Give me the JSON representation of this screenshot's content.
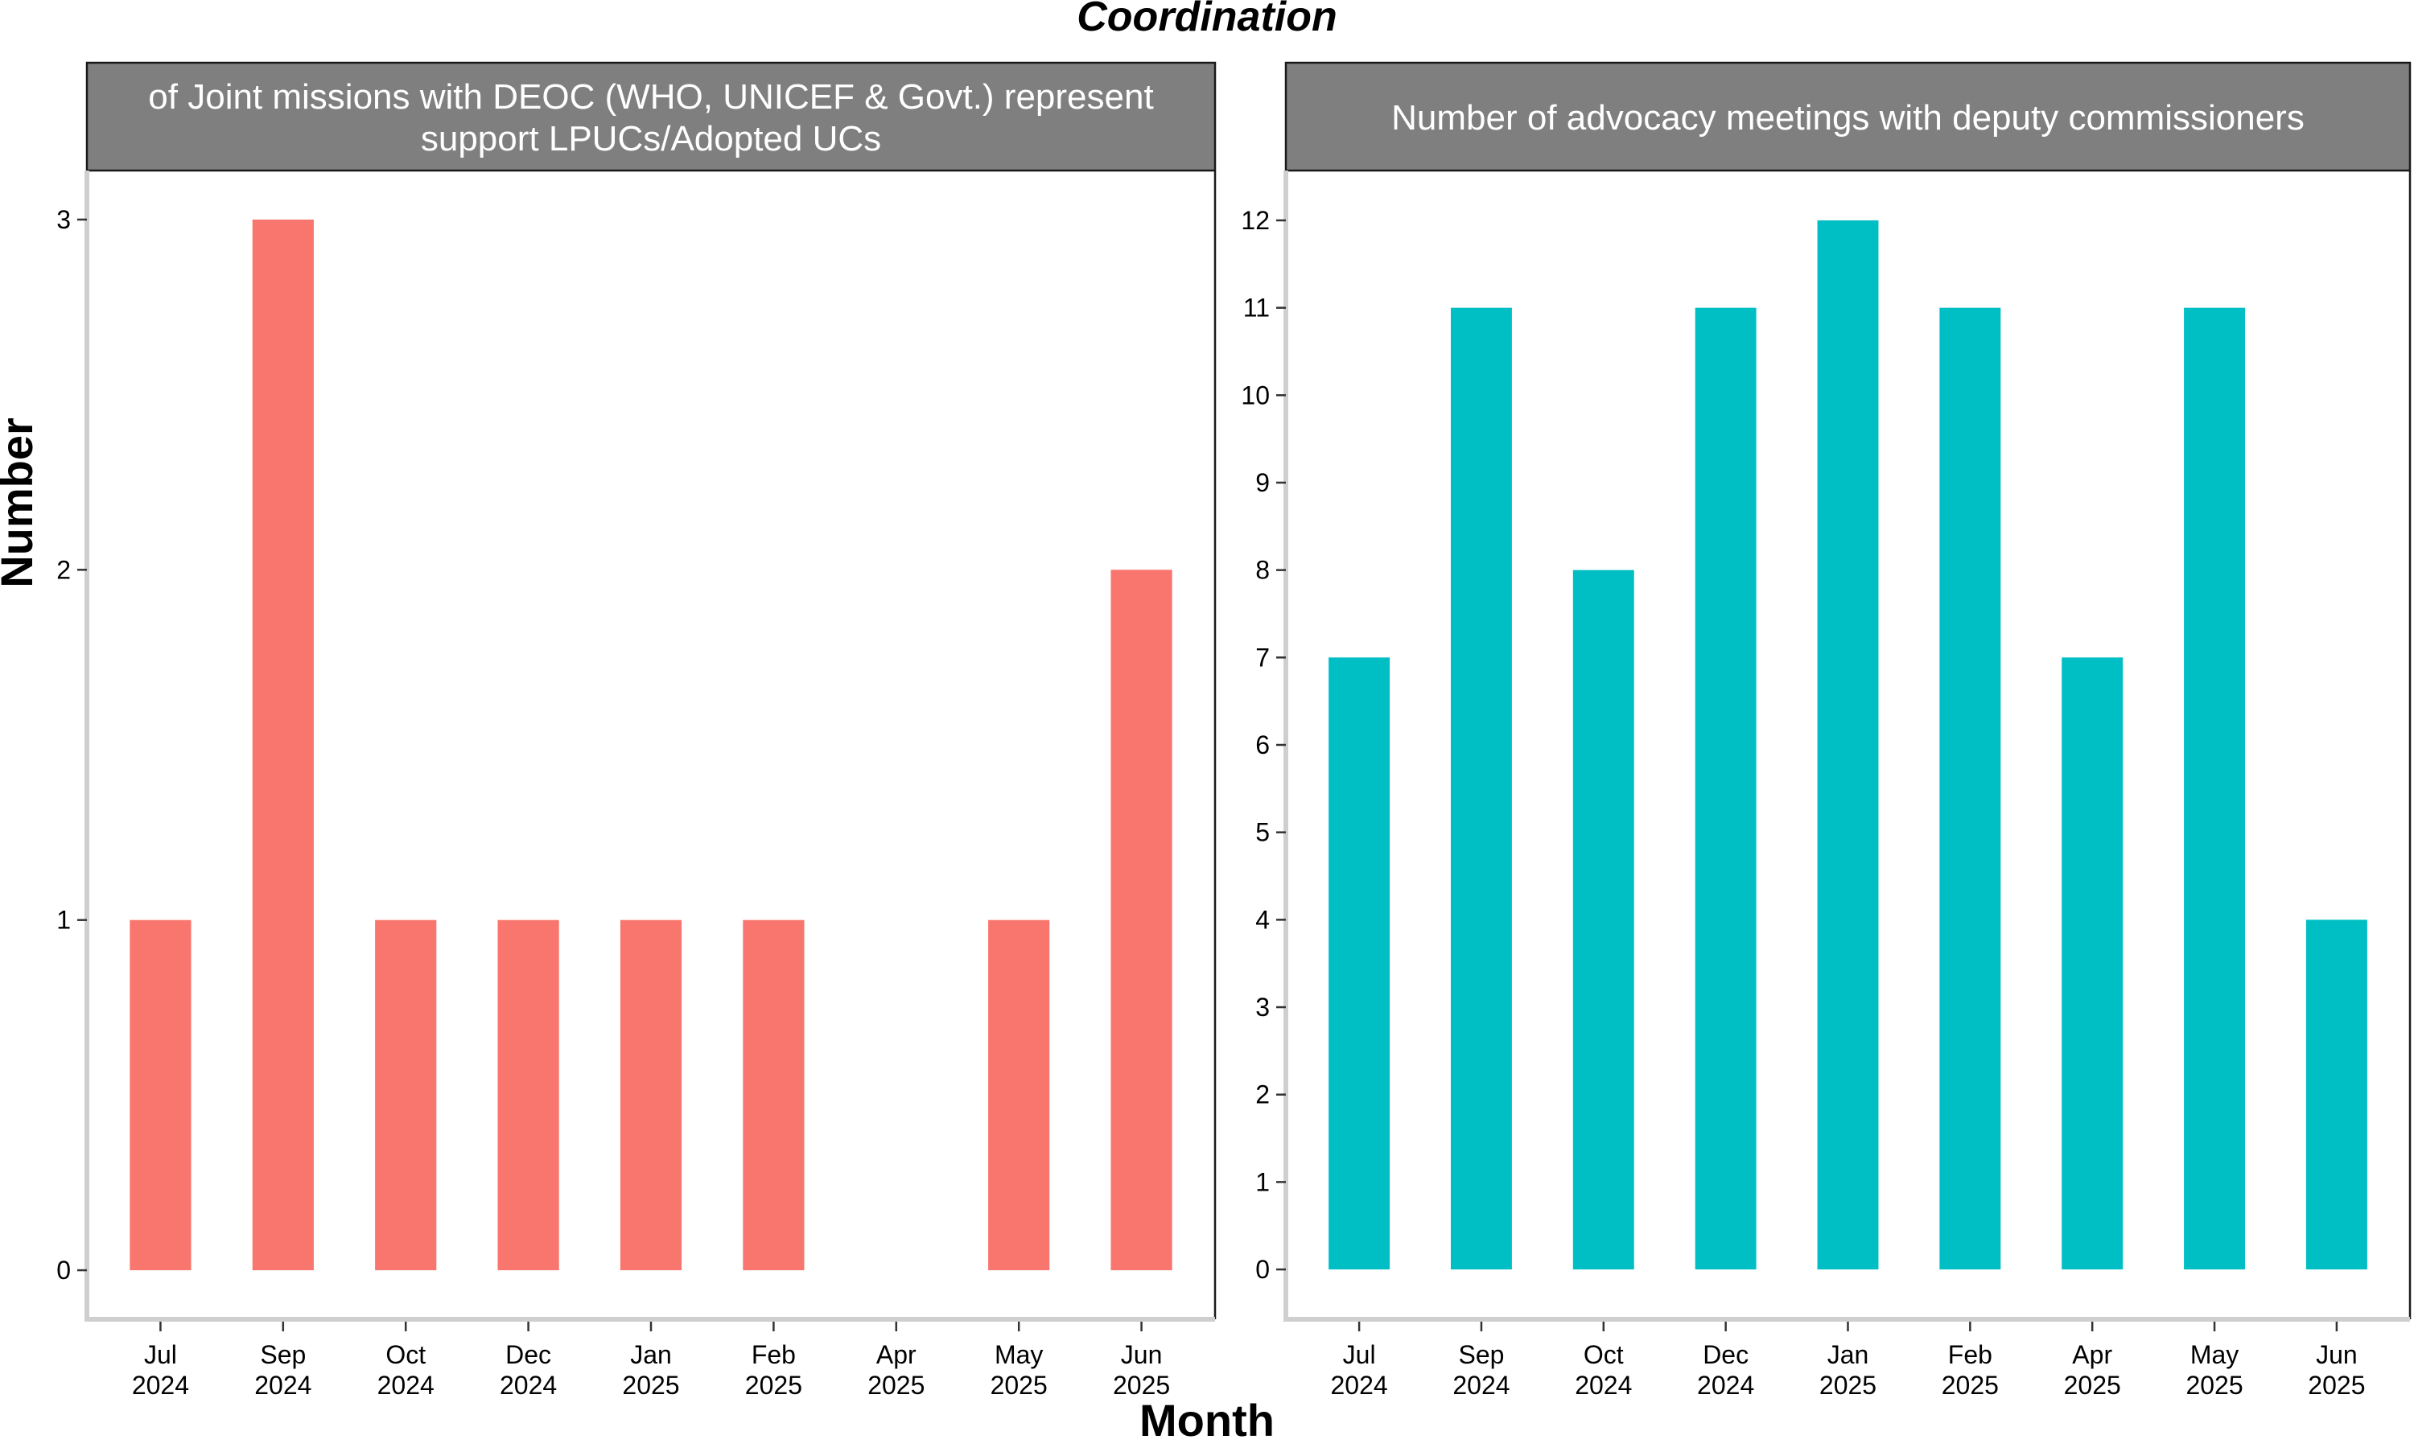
{
  "title": "Coordination",
  "xlabel": "Month",
  "ylabel": "Number",
  "chart_data": [
    {
      "type": "bar",
      "title": "Number of Joint missions with DEOC (WHO, UNICEF & Govt.) representatives to support LPUCs/Adopted UCs",
      "title_lines": [
        "of Joint missions with DEOC (WHO, UNICEF & Govt.) represent",
        "support LPUCs/Adopted UCs"
      ],
      "categories": [
        [
          "Jul",
          "2024"
        ],
        [
          "Sep",
          "2024"
        ],
        [
          "Oct",
          "2024"
        ],
        [
          "Dec",
          "2024"
        ],
        [
          "Jan",
          "2025"
        ],
        [
          "Feb",
          "2025"
        ],
        [
          "Apr",
          "2025"
        ],
        [
          "May",
          "2025"
        ],
        [
          "Jun",
          "2025"
        ]
      ],
      "values": [
        1,
        3,
        1,
        1,
        1,
        1,
        null,
        1,
        2
      ],
      "ylim": [
        -0.14,
        3.14
      ],
      "yticks": [
        0,
        1,
        2,
        3
      ],
      "color": "#F8766D",
      "strip_color": "#7F7F7F",
      "grid": false
    },
    {
      "type": "bar",
      "title": "Number of advocacy meetings with deputy commissioners",
      "title_lines": [
        "Number of advocacy meetings with deputy commissioners"
      ],
      "categories": [
        [
          "Jul",
          "2024"
        ],
        [
          "Sep",
          "2024"
        ],
        [
          "Oct",
          "2024"
        ],
        [
          "Dec",
          "2024"
        ],
        [
          "Jan",
          "2025"
        ],
        [
          "Feb",
          "2025"
        ],
        [
          "Apr",
          "2025"
        ],
        [
          "May",
          "2025"
        ],
        [
          "Jun",
          "2025"
        ]
      ],
      "values": [
        7,
        11,
        8,
        11,
        12,
        11,
        7,
        11,
        4
      ],
      "ylim": [
        -0.57,
        12.57
      ],
      "yticks": [
        0,
        1,
        2,
        3,
        4,
        5,
        6,
        7,
        8,
        9,
        10,
        11,
        12
      ],
      "color": "#00BFC4",
      "strip_color": "#7F7F7F",
      "grid": false
    }
  ]
}
